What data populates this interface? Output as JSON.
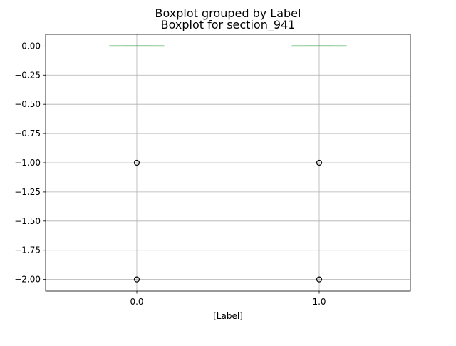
{
  "chart_data": {
    "type": "boxplot",
    "suptitle": "Boxplot grouped by Label",
    "title": "Boxplot for section_941",
    "xlabel": "[Label]",
    "ylabel": "",
    "categories": [
      "0.0",
      "1.0"
    ],
    "ylim": [
      -2.1,
      0.1
    ],
    "yticks": [
      0.0,
      -0.25,
      -0.5,
      -0.75,
      -1.0,
      -1.25,
      -1.5,
      -1.75,
      -2.0
    ],
    "ytick_labels": [
      "0.00",
      "−0.25",
      "−0.50",
      "−0.75",
      "−1.00",
      "−1.25",
      "−1.50",
      "−1.75",
      "−2.00"
    ],
    "grid": true,
    "boxes": [
      {
        "category": "0.0",
        "q1": 0.0,
        "median": 0.0,
        "q3": 0.0,
        "whisker_low": 0.0,
        "whisker_high": 0.0,
        "outliers": [
          -1.0,
          -2.0
        ]
      },
      {
        "category": "1.0",
        "q1": 0.0,
        "median": 0.0,
        "q3": 0.0,
        "whisker_low": 0.0,
        "whisker_high": 0.0,
        "outliers": [
          -1.0,
          -2.0
        ]
      }
    ],
    "colors": {
      "box": "#1f77b4",
      "median": "#2ca02c",
      "grid": "#b0b0b0",
      "axes": "#000000"
    }
  }
}
